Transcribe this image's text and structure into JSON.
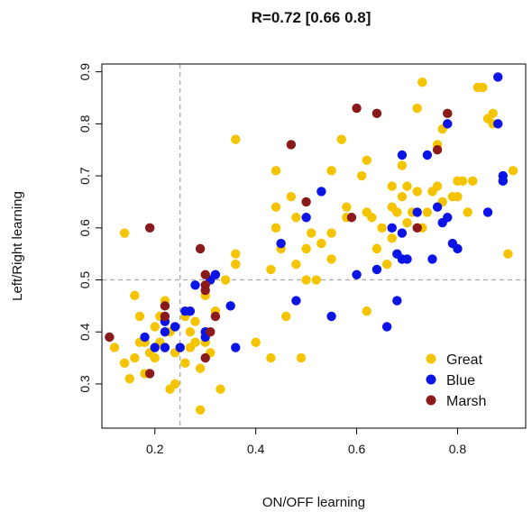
{
  "chart_data": {
    "type": "scatter",
    "title": "R=0.72 [0.66 0.8]",
    "xlabel": "ON/OFF learning",
    "ylabel": "Left/Right learning",
    "xlim": [
      0.095,
      0.935
    ],
    "ylim": [
      0.215,
      0.915
    ],
    "xticks": [
      0.2,
      0.4,
      0.6,
      0.8
    ],
    "xtick_labels": [
      "0.2",
      "0.4",
      "0.6",
      "0.8"
    ],
    "yticks": [
      0.3,
      0.4,
      0.5,
      0.6,
      0.7,
      0.8,
      0.9
    ],
    "ytick_labels": [
      "0.3",
      "0.4",
      "0.5",
      "0.6",
      "0.7",
      "0.8",
      "0.9"
    ],
    "grid": false,
    "reference_lines": {
      "x": 0.25,
      "y": 0.5,
      "style": "dashed",
      "color": "#aaaaaa"
    },
    "legend": {
      "position": "bottom-right"
    },
    "series": [
      {
        "name": "Great",
        "color": "#f5c400",
        "points": [
          [
            0.14,
            0.59
          ],
          [
            0.12,
            0.37
          ],
          [
            0.14,
            0.34
          ],
          [
            0.15,
            0.31
          ],
          [
            0.16,
            0.35
          ],
          [
            0.16,
            0.47
          ],
          [
            0.17,
            0.43
          ],
          [
            0.17,
            0.38
          ],
          [
            0.18,
            0.32
          ],
          [
            0.18,
            0.38
          ],
          [
            0.19,
            0.36
          ],
          [
            0.2,
            0.41
          ],
          [
            0.2,
            0.35
          ],
          [
            0.21,
            0.38
          ],
          [
            0.21,
            0.43
          ],
          [
            0.22,
            0.46
          ],
          [
            0.22,
            0.37
          ],
          [
            0.23,
            0.29
          ],
          [
            0.23,
            0.4
          ],
          [
            0.24,
            0.36
          ],
          [
            0.24,
            0.3
          ],
          [
            0.25,
            0.37
          ],
          [
            0.26,
            0.34
          ],
          [
            0.26,
            0.43
          ],
          [
            0.27,
            0.37
          ],
          [
            0.27,
            0.4
          ],
          [
            0.28,
            0.38
          ],
          [
            0.28,
            0.42
          ],
          [
            0.29,
            0.25
          ],
          [
            0.29,
            0.33
          ],
          [
            0.3,
            0.38
          ],
          [
            0.3,
            0.47
          ],
          [
            0.31,
            0.36
          ],
          [
            0.32,
            0.51
          ],
          [
            0.32,
            0.44
          ],
          [
            0.33,
            0.29
          ],
          [
            0.34,
            0.5
          ],
          [
            0.36,
            0.77
          ],
          [
            0.36,
            0.55
          ],
          [
            0.36,
            0.53
          ],
          [
            0.4,
            0.38
          ],
          [
            0.43,
            0.52
          ],
          [
            0.43,
            0.35
          ],
          [
            0.44,
            0.71
          ],
          [
            0.44,
            0.64
          ],
          [
            0.44,
            0.6
          ],
          [
            0.45,
            0.56
          ],
          [
            0.46,
            0.43
          ],
          [
            0.47,
            0.66
          ],
          [
            0.48,
            0.53
          ],
          [
            0.48,
            0.62
          ],
          [
            0.49,
            0.35
          ],
          [
            0.5,
            0.56
          ],
          [
            0.5,
            0.5
          ],
          [
            0.51,
            0.59
          ],
          [
            0.52,
            0.5
          ],
          [
            0.53,
            0.57
          ],
          [
            0.55,
            0.71
          ],
          [
            0.55,
            0.59
          ],
          [
            0.55,
            0.54
          ],
          [
            0.57,
            0.77
          ],
          [
            0.58,
            0.64
          ],
          [
            0.58,
            0.62
          ],
          [
            0.6,
            0.51
          ],
          [
            0.61,
            0.7
          ],
          [
            0.62,
            0.73
          ],
          [
            0.62,
            0.63
          ],
          [
            0.62,
            0.44
          ],
          [
            0.63,
            0.62
          ],
          [
            0.64,
            0.56
          ],
          [
            0.65,
            0.6
          ],
          [
            0.66,
            0.53
          ],
          [
            0.67,
            0.68
          ],
          [
            0.67,
            0.64
          ],
          [
            0.67,
            0.58
          ],
          [
            0.68,
            0.63
          ],
          [
            0.68,
            0.55
          ],
          [
            0.69,
            0.72
          ],
          [
            0.69,
            0.66
          ],
          [
            0.7,
            0.68
          ],
          [
            0.7,
            0.61
          ],
          [
            0.71,
            0.63
          ],
          [
            0.72,
            0.83
          ],
          [
            0.72,
            0.67
          ],
          [
            0.73,
            0.88
          ],
          [
            0.73,
            0.6
          ],
          [
            0.74,
            0.63
          ],
          [
            0.75,
            0.67
          ],
          [
            0.76,
            0.68
          ],
          [
            0.76,
            0.76
          ],
          [
            0.77,
            0.79
          ],
          [
            0.77,
            0.65
          ],
          [
            0.78,
            0.8
          ],
          [
            0.79,
            0.66
          ],
          [
            0.8,
            0.66
          ],
          [
            0.8,
            0.69
          ],
          [
            0.81,
            0.69
          ],
          [
            0.82,
            0.63
          ],
          [
            0.83,
            0.69
          ],
          [
            0.84,
            0.87
          ],
          [
            0.85,
            0.87
          ],
          [
            0.86,
            0.81
          ],
          [
            0.87,
            0.82
          ],
          [
            0.87,
            0.8
          ],
          [
            0.9,
            0.55
          ],
          [
            0.91,
            0.71
          ]
        ]
      },
      {
        "name": "Blue",
        "color": "#0a14e6",
        "points": [
          [
            0.18,
            0.39
          ],
          [
            0.2,
            0.37
          ],
          [
            0.22,
            0.42
          ],
          [
            0.22,
            0.4
          ],
          [
            0.22,
            0.37
          ],
          [
            0.24,
            0.41
          ],
          [
            0.25,
            0.37
          ],
          [
            0.26,
            0.44
          ],
          [
            0.27,
            0.44
          ],
          [
            0.28,
            0.49
          ],
          [
            0.3,
            0.4
          ],
          [
            0.3,
            0.39
          ],
          [
            0.31,
            0.5
          ],
          [
            0.32,
            0.51
          ],
          [
            0.35,
            0.45
          ],
          [
            0.36,
            0.37
          ],
          [
            0.45,
            0.57
          ],
          [
            0.48,
            0.46
          ],
          [
            0.5,
            0.62
          ],
          [
            0.53,
            0.67
          ],
          [
            0.55,
            0.43
          ],
          [
            0.6,
            0.51
          ],
          [
            0.64,
            0.52
          ],
          [
            0.66,
            0.41
          ],
          [
            0.67,
            0.6
          ],
          [
            0.68,
            0.55
          ],
          [
            0.68,
            0.46
          ],
          [
            0.69,
            0.54
          ],
          [
            0.69,
            0.59
          ],
          [
            0.69,
            0.74
          ],
          [
            0.7,
            0.54
          ],
          [
            0.72,
            0.63
          ],
          [
            0.74,
            0.74
          ],
          [
            0.75,
            0.54
          ],
          [
            0.76,
            0.64
          ],
          [
            0.77,
            0.61
          ],
          [
            0.78,
            0.62
          ],
          [
            0.78,
            0.8
          ],
          [
            0.79,
            0.57
          ],
          [
            0.8,
            0.56
          ],
          [
            0.86,
            0.63
          ],
          [
            0.88,
            0.89
          ],
          [
            0.89,
            0.7
          ],
          [
            0.89,
            0.69
          ],
          [
            0.88,
            0.8
          ]
        ]
      },
      {
        "name": "Marsh",
        "color": "#8b1a1a",
        "points": [
          [
            0.11,
            0.39
          ],
          [
            0.19,
            0.32
          ],
          [
            0.19,
            0.6
          ],
          [
            0.22,
            0.45
          ],
          [
            0.22,
            0.43
          ],
          [
            0.29,
            0.56
          ],
          [
            0.3,
            0.51
          ],
          [
            0.3,
            0.49
          ],
          [
            0.3,
            0.48
          ],
          [
            0.3,
            0.35
          ],
          [
            0.31,
            0.4
          ],
          [
            0.32,
            0.43
          ],
          [
            0.47,
            0.76
          ],
          [
            0.5,
            0.65
          ],
          [
            0.59,
            0.62
          ],
          [
            0.6,
            0.83
          ],
          [
            0.64,
            0.82
          ],
          [
            0.72,
            0.6
          ],
          [
            0.76,
            0.75
          ],
          [
            0.78,
            0.82
          ]
        ]
      }
    ]
  }
}
